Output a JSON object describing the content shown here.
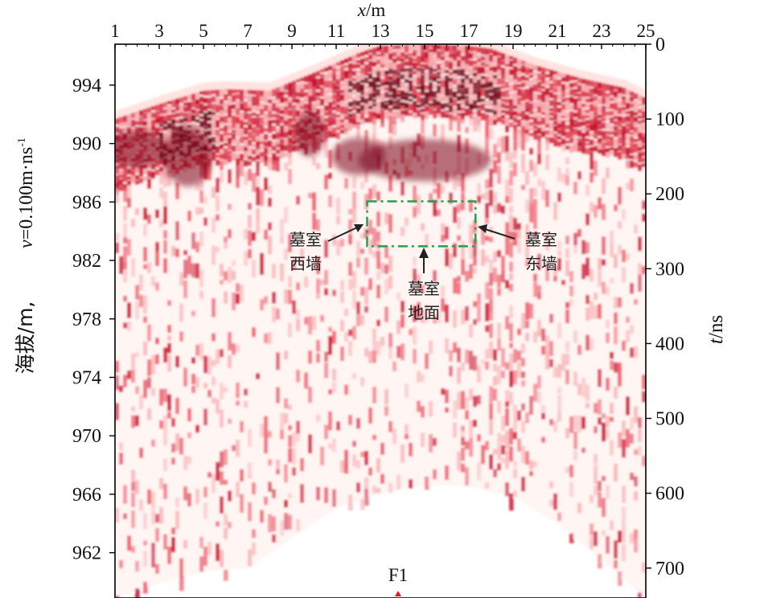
{
  "chart_data": {
    "type": "heatmap",
    "title": "",
    "x_axis": {
      "label_var": "x",
      "label_unit": "/m",
      "ticks": [
        "1",
        "3",
        "5",
        "7",
        "9",
        "11",
        "13",
        "15",
        "17",
        "19",
        "21",
        "23",
        "25"
      ],
      "range": [
        1,
        25
      ],
      "position": "top"
    },
    "y_left": {
      "label_main": "海拔/m,",
      "label_v": "v",
      "label_rest": "=0.100m·ns",
      "label_sup": "-1",
      "ticks": [
        "994",
        "990",
        "986",
        "982",
        "978",
        "974",
        "970",
        "966",
        "962"
      ],
      "tick_values": [
        994,
        990,
        986,
        982,
        978,
        974,
        970,
        966,
        962
      ],
      "range": [
        958.9,
        996.8
      ]
    },
    "y_right": {
      "label_var": "t",
      "label_unit": "/ns",
      "ticks": [
        "0",
        "100",
        "200",
        "300",
        "400",
        "500",
        "600",
        "700"
      ],
      "tick_values": [
        0,
        100,
        200,
        300,
        400,
        500,
        600,
        700
      ],
      "range": [
        0,
        740
      ]
    },
    "colormap": [
      "#fff4f2",
      "#c8102e",
      "#7a0016"
    ],
    "surface_profile": {
      "x": [
        1,
        3,
        5,
        6,
        8,
        10,
        12,
        13,
        15,
        17,
        18,
        20,
        22,
        24,
        25
      ],
      "t_ns": [
        100,
        80,
        62,
        60,
        62,
        38,
        12,
        2,
        0,
        2,
        6,
        28,
        45,
        58,
        72
      ]
    },
    "bottom_limit": {
      "x": [
        1,
        3,
        5,
        7,
        9,
        11,
        13,
        15,
        17,
        19,
        21,
        23,
        25
      ],
      "t_ns": [
        740,
        720,
        705,
        700,
        660,
        620,
        600,
        590,
        590,
        605,
        640,
        690,
        740
      ]
    },
    "annotations": [
      {
        "lines": [
          "墓室",
          "西墙"
        ]
      },
      {
        "lines": [
          "墓室",
          "地面"
        ]
      },
      {
        "lines": [
          "墓室",
          "东墙"
        ]
      }
    ],
    "tomb_box": {
      "x_range": [
        12.4,
        17.3
      ],
      "t_range": [
        210,
        270
      ],
      "color": "#22a04a"
    },
    "marker_label": "F1",
    "marker_x": 13.8
  }
}
